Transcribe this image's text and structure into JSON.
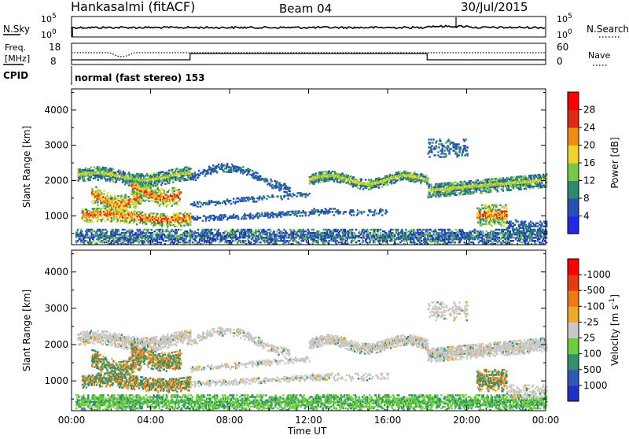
{
  "header": {
    "station": "Hankasalmi (fitACF)",
    "beam": "Beam 04",
    "date": "30/Jul/2015"
  },
  "summary_panels": {
    "nsky": {
      "label": "N.Sky",
      "tick_top": "10^5",
      "tick_bottom": "10^0",
      "right_label": "N.Search",
      "right_tick_top": "10^5",
      "right_tick_bottom": "10^0"
    },
    "freq": {
      "label_line1": "Freq.",
      "label_line2": "[MHz]",
      "tick_top": "18",
      "tick_bottom": "8",
      "right_label": "Nave",
      "right_tick_top": "60",
      "right_tick_bottom": "0"
    },
    "cpid": {
      "label": "CPID",
      "text": "normal (fast stereo) 153"
    }
  },
  "chart_data": [
    {
      "type": "heatmap",
      "name": "power-panel",
      "ylabel": "Slant Range [km]",
      "yticks": [
        1000,
        2000,
        3000,
        4000
      ],
      "ylim": [
        180,
        4600
      ],
      "xticks": [
        "00:00",
        "04:00",
        "08:00",
        "12:00",
        "16:00",
        "20:00",
        "00:00"
      ],
      "xlim_hours": [
        0,
        24
      ],
      "colorbar": {
        "label": "Power [dB]",
        "ticks": [
          "4",
          "8",
          "12",
          "16",
          "20",
          "24",
          "28"
        ],
        "colors": [
          "#1e28e6",
          "#2850b4",
          "#2e8a6e",
          "#7ac84a",
          "#f0d428",
          "#f08c14",
          "#e02818",
          "#ff0000"
        ]
      }
    },
    {
      "type": "heatmap",
      "name": "velocity-panel",
      "ylabel": "Slant Range [km]",
      "yticks": [
        1000,
        2000,
        3000,
        4000
      ],
      "ylim": [
        180,
        4600
      ],
      "xticks": [
        "00:00",
        "04:00",
        "08:00",
        "12:00",
        "16:00",
        "20:00",
        "00:00"
      ],
      "xlim_hours": [
        0,
        24
      ],
      "xlabel": "Time UT",
      "colorbar": {
        "label": "Velocity [m s^-1]",
        "ticks": [
          "1000",
          "500",
          "100",
          "25",
          "-25",
          "-100",
          "-500",
          "-1000"
        ],
        "colors": [
          "#1e32c8",
          "#2d5ab4",
          "#32906e",
          "#6ccf3a",
          "#c8c8c8",
          "#f0a828",
          "#f07818",
          "#e83a10",
          "#ff0000"
        ]
      }
    }
  ]
}
